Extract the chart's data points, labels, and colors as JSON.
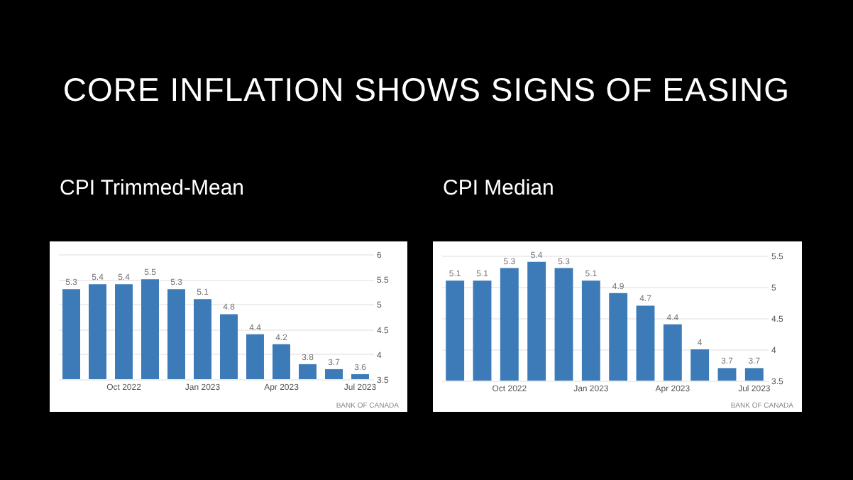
{
  "chart_data": [
    {
      "type": "other",
      "title": "CORE INFLATION SHOWS SIGNS OF EASING"
    },
    {
      "type": "bar",
      "title": "CPI Trimmed-Mean",
      "categories": [
        null,
        null,
        "Oct 2022",
        null,
        null,
        "Jan 2023",
        null,
        null,
        "Apr 2023",
        null,
        null,
        "Jul 2023"
      ],
      "values": [
        5.3,
        5.4,
        5.4,
        5.5,
        5.3,
        5.1,
        4.8,
        4.4,
        4.2,
        3.8,
        3.7,
        3.6
      ],
      "color": "#3d7ab8",
      "ylim": [
        3.5,
        6
      ],
      "yticks": [
        3.5,
        4,
        4.5,
        5,
        5.5,
        6
      ],
      "grid": "y",
      "data_labels": true,
      "annotations": [
        "BANK OF CANADA"
      ]
    },
    {
      "type": "bar",
      "title": "CPI Median",
      "categories": [
        null,
        null,
        "Oct 2022",
        null,
        null,
        "Jan 2023",
        null,
        null,
        "Apr 2023",
        null,
        null,
        "Jul 2023"
      ],
      "values": [
        5.1,
        5.1,
        5.3,
        5.4,
        5.3,
        5.1,
        4.9,
        4.7,
        4.4,
        4,
        3.7,
        3.7
      ],
      "color": "#3d7ab8",
      "ylim": [
        3.5,
        5.5
      ],
      "yticks": [
        3.5,
        4,
        4.5,
        5,
        5.5
      ],
      "grid": "y",
      "data_labels": true,
      "annotations": [
        "BANK OF CANADA"
      ]
    }
  ]
}
